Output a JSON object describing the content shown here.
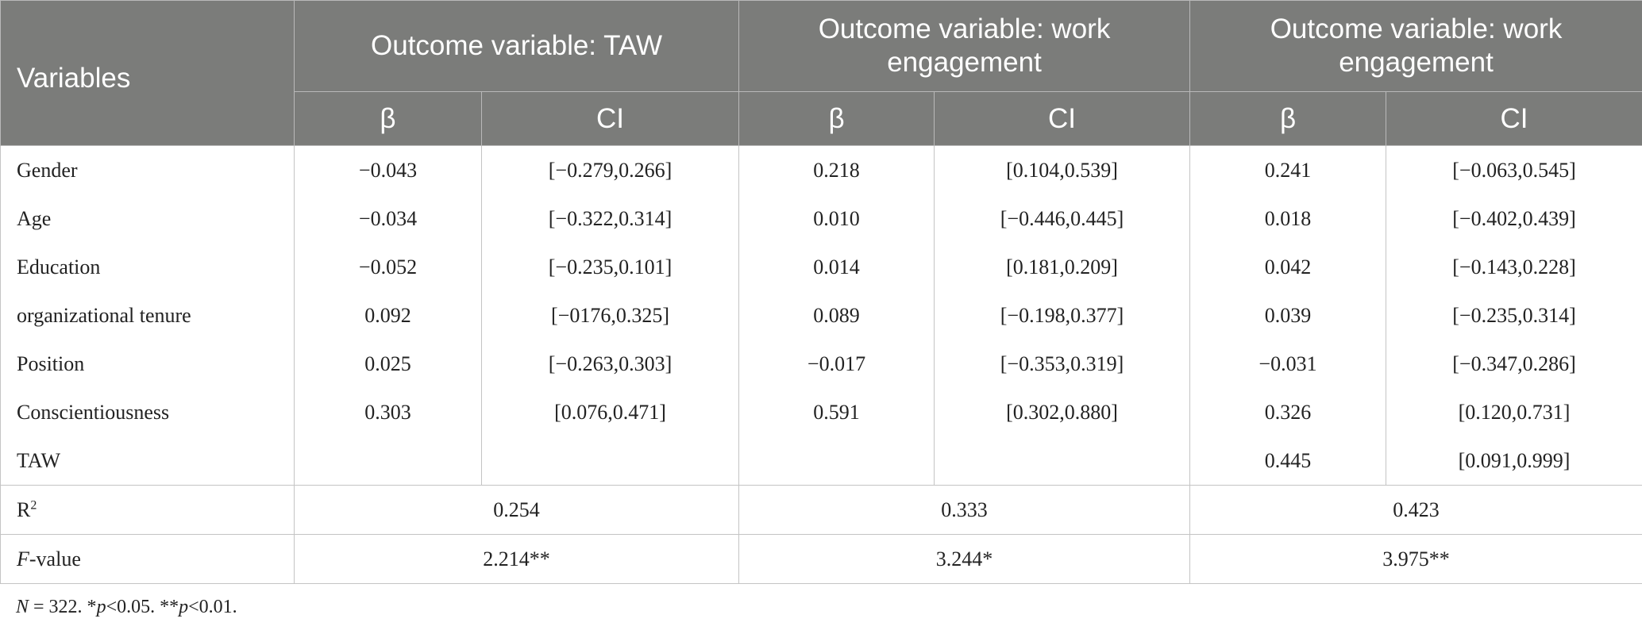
{
  "header": {
    "variables": "Variables",
    "groups": [
      "Outcome variable: TAW",
      "Outcome variable: work engagement",
      "Outcome variable: work engagement"
    ],
    "beta": "β",
    "ci": "CI"
  },
  "rows": [
    {
      "var": "Gender",
      "c": [
        "−0.043",
        "[−0.279,0.266]",
        "0.218",
        "[0.104,0.539]",
        "0.241",
        "[−0.063,0.545]"
      ]
    },
    {
      "var": "Age",
      "c": [
        "−0.034",
        "[−0.322,0.314]",
        "0.010",
        "[−0.446,0.445]",
        "0.018",
        "[−0.402,0.439]"
      ]
    },
    {
      "var": "Education",
      "c": [
        "−0.052",
        "[−0.235,0.101]",
        "0.014",
        "[0.181,0.209]",
        "0.042",
        "[−0.143,0.228]"
      ]
    },
    {
      "var": "organizational tenure",
      "c": [
        "0.092",
        "[−0176,0.325]",
        "0.089",
        "[−0.198,0.377]",
        "0.039",
        "[−0.235,0.314]"
      ]
    },
    {
      "var": "Position",
      "c": [
        "0.025",
        "[−0.263,0.303]",
        "−0.017",
        "[−0.353,0.319]",
        "−0.031",
        "[−0.347,0.286]"
      ]
    },
    {
      "var": "Conscientiousness",
      "c": [
        "0.303",
        "[0.076,0.471]",
        "0.591",
        "[0.302,0.880]",
        "0.326",
        "[0.120,0.731]"
      ]
    },
    {
      "var": "TAW",
      "c": [
        "",
        "",
        "",
        "",
        "0.445",
        "[0.091,0.999]"
      ]
    }
  ],
  "r2": {
    "label": "R",
    "sup": "2",
    "values": [
      "0.254",
      "0.333",
      "0.423"
    ]
  },
  "fvalue": {
    "label_italic": "F",
    "label_rest": "-value",
    "values": [
      "2.214**",
      "3.244*",
      "3.975**"
    ]
  },
  "note": {
    "n_italic": "N",
    "n_rest": " = 322. *",
    "p1_italic": "p",
    "p1_rest": "<0.05. **",
    "p2_italic": "p",
    "p2_rest": "<0.01."
  }
}
